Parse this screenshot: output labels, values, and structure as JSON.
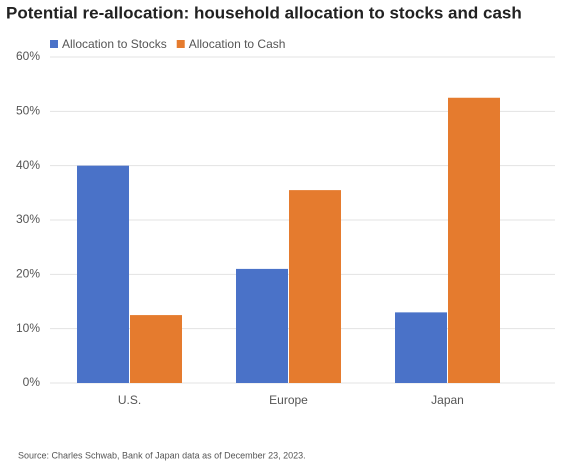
{
  "chart_data": {
    "type": "bar",
    "title": "Potential re-allocation: household allocation to stocks and cash",
    "categories": [
      "U.S.",
      "Europe",
      "Japan"
    ],
    "series": [
      {
        "name": "Allocation to Stocks",
        "color": "#4a72c8",
        "values": [
          40,
          21,
          13
        ]
      },
      {
        "name": "Allocation to Cash",
        "color": "#e57b2e",
        "values": [
          12.5,
          35.5,
          52.5
        ]
      }
    ],
    "ylim": [
      0,
      60
    ],
    "yticks": [
      {
        "value": 0,
        "label": "0%"
      },
      {
        "value": 10,
        "label": "10%"
      },
      {
        "value": 20,
        "label": "20%"
      },
      {
        "value": 30,
        "label": "30%"
      },
      {
        "value": 40,
        "label": "40%"
      },
      {
        "value": 50,
        "label": "50%"
      },
      {
        "value": 60,
        "label": "60%"
      }
    ],
    "grid": true,
    "legend": "top",
    "source": "Source: Charles Schwab, Bank of Japan data as of December 23, 2023."
  }
}
